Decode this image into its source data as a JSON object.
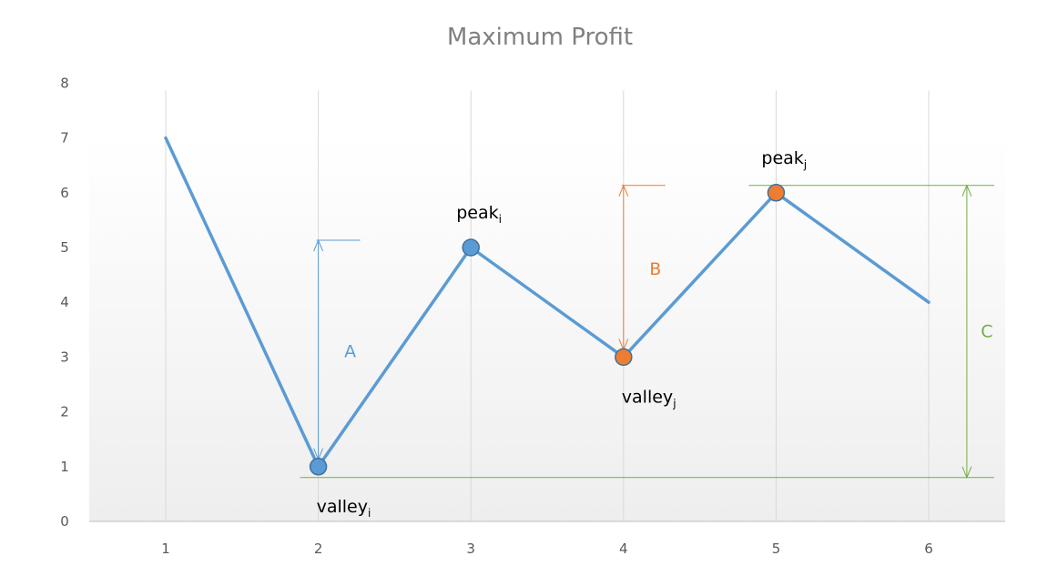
{
  "chart_data": {
    "type": "line",
    "title": "Maximum Profit",
    "xlabel": "",
    "ylabel": "",
    "x": [
      1,
      2,
      3,
      4,
      5,
      6
    ],
    "series": [
      {
        "values": [
          7,
          1,
          5,
          3,
          6,
          4
        ],
        "color": "#5b9bd5"
      }
    ],
    "xlim": [
      0,
      6.5
    ],
    "ylim": [
      0,
      8
    ],
    "yticks": [
      0,
      1,
      2,
      3,
      4,
      5,
      6,
      7,
      8
    ],
    "xticks": [
      1,
      2,
      3,
      4,
      5,
      6
    ],
    "grid": "vertical",
    "legend": "none",
    "markers": [
      {
        "x": 2,
        "y": 1,
        "color": "#5b9bd5",
        "label": "valley",
        "sub": "i",
        "placement": "below"
      },
      {
        "x": 3,
        "y": 5,
        "color": "#5b9bd5",
        "label": "peak",
        "sub": "i",
        "placement": "above"
      },
      {
        "x": 4,
        "y": 3,
        "color": "#ed7d31",
        "label": "valley",
        "sub": "j",
        "placement": "below"
      },
      {
        "x": 5,
        "y": 6,
        "color": "#ed7d31",
        "label": "peak",
        "sub": "j",
        "placement": "above"
      }
    ],
    "ranges": [
      {
        "label": "A",
        "x": 2,
        "from": 1,
        "to": 5,
        "color": "#5b9bd5"
      },
      {
        "label": "B",
        "x": 4,
        "from": 3,
        "to": 6,
        "color": "#ed7d31"
      },
      {
        "label": "C",
        "x": 6.25,
        "from": 1,
        "to": 6,
        "color": "#70ad47"
      }
    ]
  }
}
